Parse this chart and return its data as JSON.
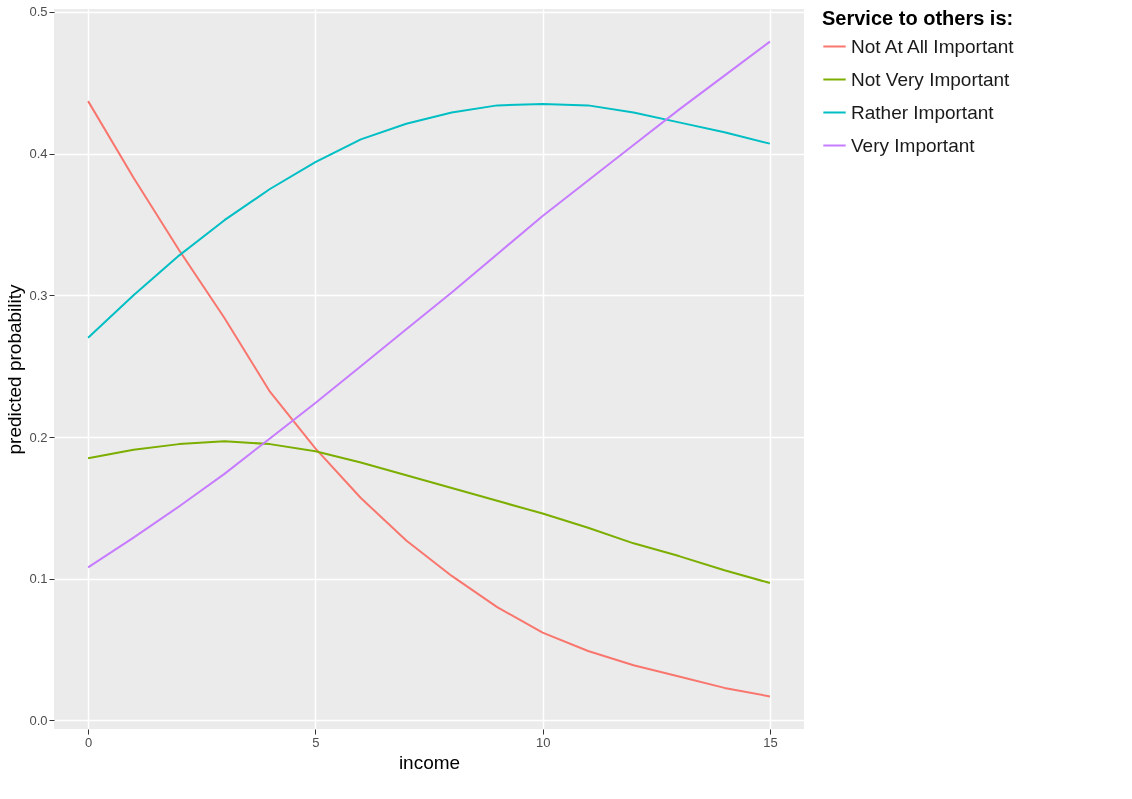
{
  "chart_data": {
    "type": "line",
    "xlabel": "income",
    "ylabel": "predicted probability",
    "legend_title": "Service to others is:",
    "x": [
      0,
      1,
      2,
      3,
      4,
      5,
      6,
      7,
      8,
      9,
      10,
      11,
      12,
      13,
      14,
      15
    ],
    "series": [
      {
        "name": "Not At All Important",
        "color": "#f8766d",
        "values": [
          0.437,
          0.383,
          0.332,
          0.284,
          0.232,
          0.192,
          0.157,
          0.127,
          0.102,
          0.08,
          0.062,
          0.049,
          0.039,
          0.031,
          0.023,
          0.017
        ]
      },
      {
        "name": "Not Very Important",
        "color": "#7cae00",
        "values": [
          0.185,
          0.191,
          0.195,
          0.197,
          0.195,
          0.19,
          0.182,
          0.173,
          0.164,
          0.155,
          0.146,
          0.136,
          0.125,
          0.116,
          0.106,
          0.097
        ]
      },
      {
        "name": "Rather Important",
        "color": "#00bfc4",
        "values": [
          0.27,
          0.3,
          0.328,
          0.353,
          0.375,
          0.394,
          0.41,
          0.421,
          0.429,
          0.434,
          0.435,
          0.434,
          0.429,
          0.422,
          0.415,
          0.407
        ]
      },
      {
        "name": "Very Important",
        "color": "#c77cff",
        "values": [
          0.108,
          0.129,
          0.151,
          0.174,
          0.199,
          0.224,
          0.25,
          0.276,
          0.302,
          0.329,
          0.356,
          0.381,
          0.406,
          0.431,
          0.455,
          0.479
        ]
      }
    ],
    "xlim": [
      -0.75,
      15.75
    ],
    "xticks": [
      0,
      5,
      10,
      15
    ],
    "ylim": [
      -0.006,
      0.502
    ],
    "yticks": [
      {
        "value": 0,
        "label": "0.0"
      },
      0.1,
      0.2,
      0.3,
      0.4,
      0.5
    ],
    "grid": true,
    "legend": "right",
    "line_style": "solid"
  }
}
